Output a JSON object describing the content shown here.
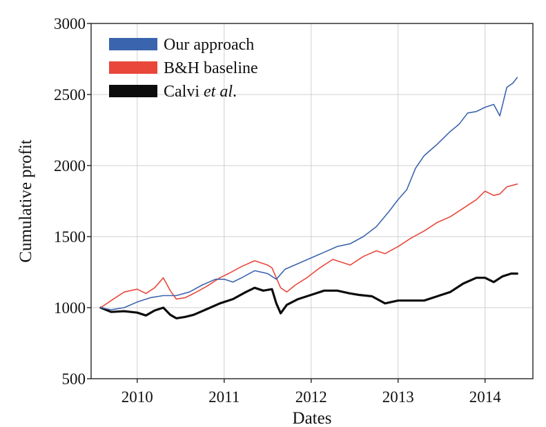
{
  "chart_data": {
    "type": "line",
    "xlabel": "Dates",
    "ylabel": "Cumulative profit",
    "xlim": [
      2009.47,
      2014.55
    ],
    "ylim": [
      500,
      3000
    ],
    "xticks": [
      2010,
      2011,
      2012,
      2013,
      2014
    ],
    "yticks": [
      500,
      1000,
      1500,
      2000,
      2500,
      3000
    ],
    "grid": true,
    "legend_position": "top-left",
    "series": [
      {
        "name": "Our approach",
        "name_parts": [
          "Our approach"
        ],
        "color": "#3a64ad",
        "line_width": 1.6,
        "points": [
          [
            2009.58,
            1000
          ],
          [
            2009.7,
            985
          ],
          [
            2009.85,
            1000
          ],
          [
            2010.0,
            1040
          ],
          [
            2010.15,
            1070
          ],
          [
            2010.3,
            1085
          ],
          [
            2010.45,
            1085
          ],
          [
            2010.6,
            1110
          ],
          [
            2010.75,
            1160
          ],
          [
            2010.9,
            1200
          ],
          [
            2011.0,
            1200
          ],
          [
            2011.1,
            1180
          ],
          [
            2011.2,
            1210
          ],
          [
            2011.35,
            1260
          ],
          [
            2011.5,
            1240
          ],
          [
            2011.6,
            1200
          ],
          [
            2011.7,
            1270
          ],
          [
            2011.85,
            1310
          ],
          [
            2012.0,
            1350
          ],
          [
            2012.15,
            1390
          ],
          [
            2012.3,
            1430
          ],
          [
            2012.45,
            1450
          ],
          [
            2012.6,
            1500
          ],
          [
            2012.75,
            1570
          ],
          [
            2012.9,
            1680
          ],
          [
            2013.0,
            1760
          ],
          [
            2013.1,
            1830
          ],
          [
            2013.2,
            1980
          ],
          [
            2013.3,
            2070
          ],
          [
            2013.45,
            2150
          ],
          [
            2013.6,
            2240
          ],
          [
            2013.7,
            2290
          ],
          [
            2013.8,
            2370
          ],
          [
            2013.9,
            2380
          ],
          [
            2014.0,
            2410
          ],
          [
            2014.1,
            2430
          ],
          [
            2014.17,
            2350
          ],
          [
            2014.25,
            2550
          ],
          [
            2014.32,
            2580
          ],
          [
            2014.37,
            2620
          ]
        ]
      },
      {
        "name": "B&H baseline",
        "name_parts": [
          "B&H baseline"
        ],
        "color": "#e8473a",
        "line_width": 1.6,
        "points": [
          [
            2009.58,
            1000
          ],
          [
            2009.7,
            1050
          ],
          [
            2009.85,
            1110
          ],
          [
            2010.0,
            1130
          ],
          [
            2010.1,
            1100
          ],
          [
            2010.2,
            1140
          ],
          [
            2010.3,
            1210
          ],
          [
            2010.38,
            1120
          ],
          [
            2010.45,
            1060
          ],
          [
            2010.55,
            1070
          ],
          [
            2010.65,
            1100
          ],
          [
            2010.8,
            1150
          ],
          [
            2010.95,
            1210
          ],
          [
            2011.05,
            1240
          ],
          [
            2011.2,
            1290
          ],
          [
            2011.35,
            1330
          ],
          [
            2011.5,
            1300
          ],
          [
            2011.55,
            1280
          ],
          [
            2011.65,
            1140
          ],
          [
            2011.72,
            1110
          ],
          [
            2011.82,
            1160
          ],
          [
            2011.95,
            1210
          ],
          [
            2012.1,
            1280
          ],
          [
            2012.25,
            1340
          ],
          [
            2012.35,
            1320
          ],
          [
            2012.45,
            1300
          ],
          [
            2012.6,
            1360
          ],
          [
            2012.75,
            1400
          ],
          [
            2012.85,
            1380
          ],
          [
            2013.0,
            1430
          ],
          [
            2013.15,
            1490
          ],
          [
            2013.3,
            1540
          ],
          [
            2013.45,
            1600
          ],
          [
            2013.6,
            1640
          ],
          [
            2013.75,
            1700
          ],
          [
            2013.9,
            1760
          ],
          [
            2014.0,
            1820
          ],
          [
            2014.1,
            1790
          ],
          [
            2014.17,
            1800
          ],
          [
            2014.25,
            1850
          ],
          [
            2014.37,
            1870
          ]
        ]
      },
      {
        "name": "Calvi et al.",
        "name_parts": [
          "Calvi ",
          "et al",
          "."
        ],
        "color": "#0c0c0c",
        "line_width": 3.2,
        "points": [
          [
            2009.58,
            1000
          ],
          [
            2009.7,
            970
          ],
          [
            2009.85,
            975
          ],
          [
            2010.0,
            965
          ],
          [
            2010.1,
            945
          ],
          [
            2010.2,
            980
          ],
          [
            2010.3,
            1000
          ],
          [
            2010.38,
            950
          ],
          [
            2010.45,
            925
          ],
          [
            2010.55,
            935
          ],
          [
            2010.65,
            950
          ],
          [
            2010.8,
            990
          ],
          [
            2010.95,
            1030
          ],
          [
            2011.1,
            1060
          ],
          [
            2011.25,
            1110
          ],
          [
            2011.35,
            1140
          ],
          [
            2011.45,
            1120
          ],
          [
            2011.55,
            1130
          ],
          [
            2011.6,
            1030
          ],
          [
            2011.65,
            960
          ],
          [
            2011.72,
            1020
          ],
          [
            2011.85,
            1060
          ],
          [
            2012.0,
            1090
          ],
          [
            2012.15,
            1120
          ],
          [
            2012.3,
            1120
          ],
          [
            2012.45,
            1100
          ],
          [
            2012.55,
            1090
          ],
          [
            2012.7,
            1080
          ],
          [
            2012.85,
            1030
          ],
          [
            2013.0,
            1050
          ],
          [
            2013.15,
            1050
          ],
          [
            2013.3,
            1050
          ],
          [
            2013.45,
            1080
          ],
          [
            2013.6,
            1110
          ],
          [
            2013.75,
            1170
          ],
          [
            2013.9,
            1210
          ],
          [
            2014.0,
            1210
          ],
          [
            2014.1,
            1180
          ],
          [
            2014.2,
            1220
          ],
          [
            2014.3,
            1240
          ],
          [
            2014.37,
            1240
          ]
        ]
      }
    ]
  }
}
